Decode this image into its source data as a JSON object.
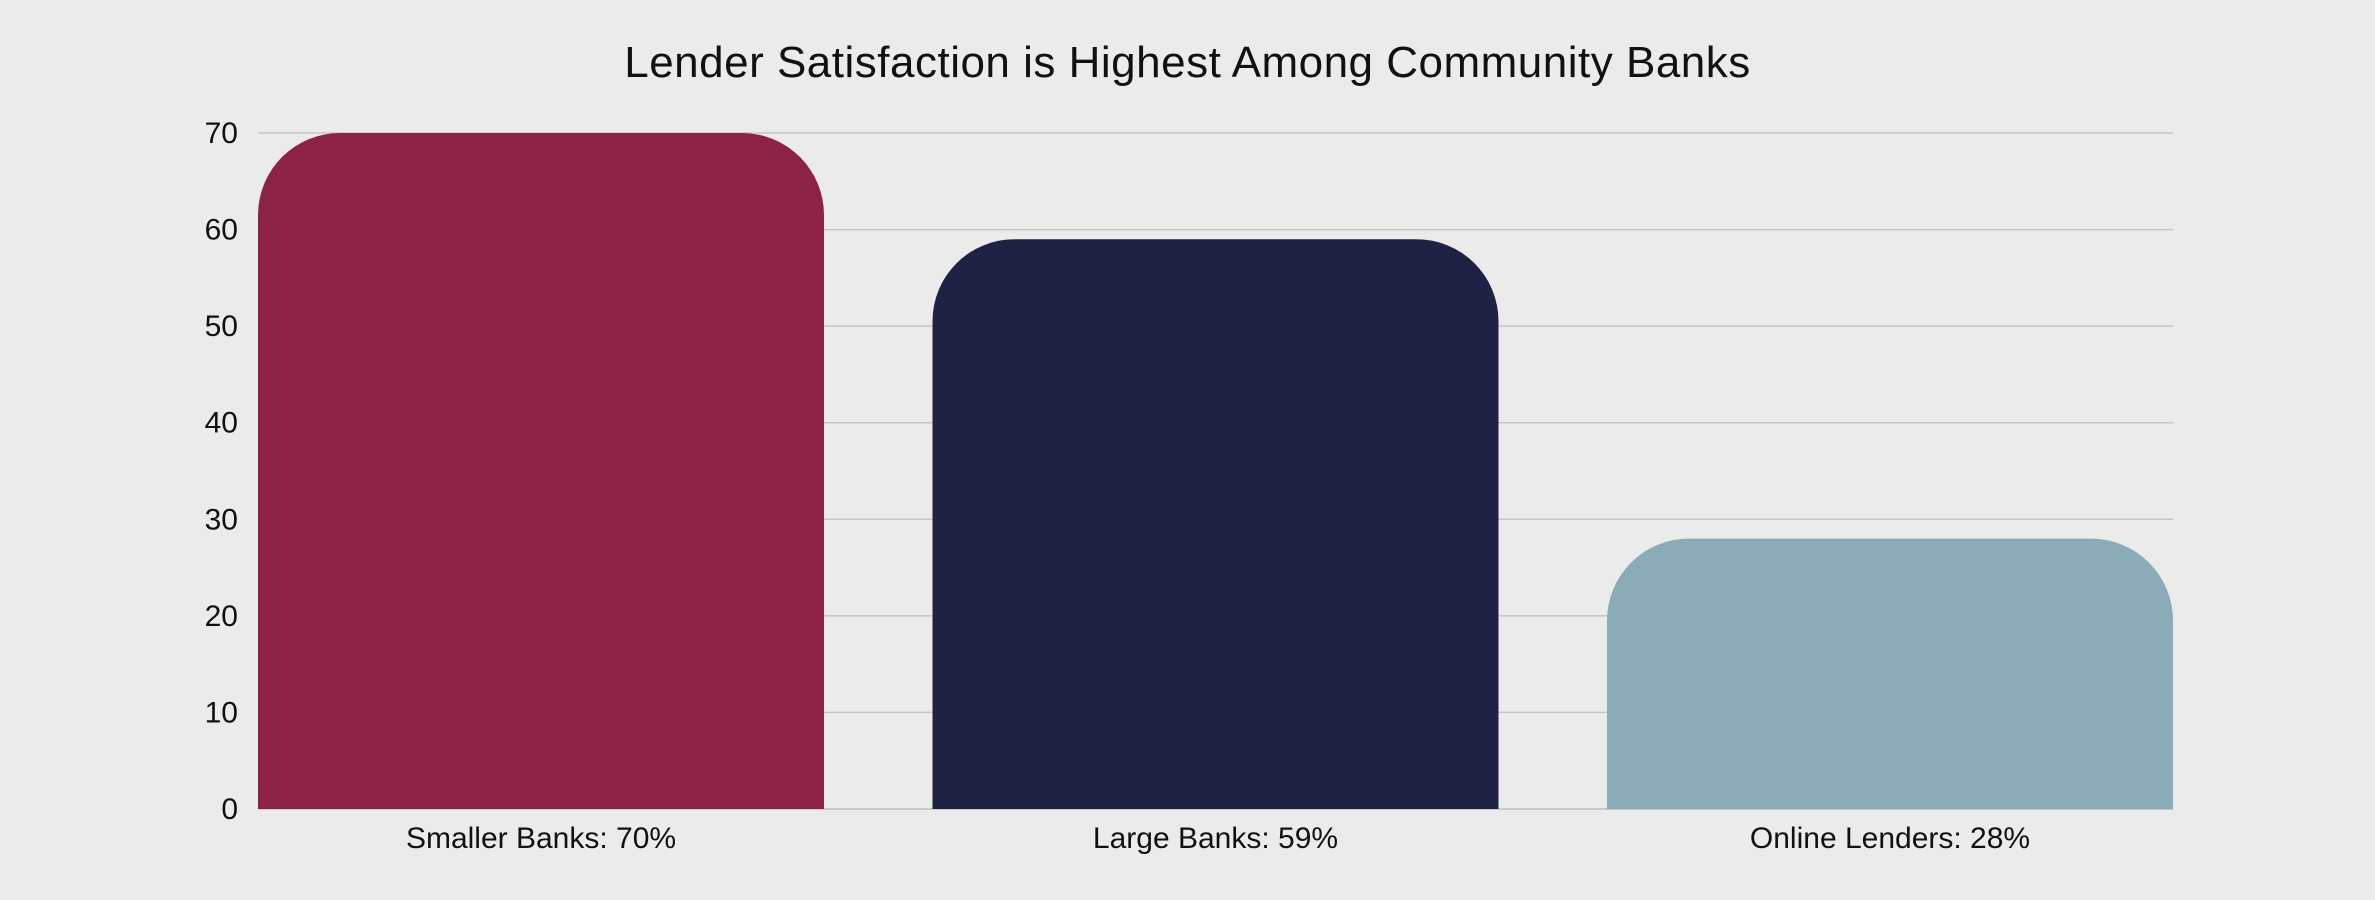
{
  "chart_data": {
    "type": "bar",
    "title": "Lender Satisfaction is Highest Among Community Banks",
    "xlabel": "",
    "ylabel": "",
    "categories": [
      "Smaller Banks: 70%",
      "Large Banks: 59%",
      "Online Lenders: 28%"
    ],
    "values": [
      70,
      59,
      28
    ],
    "colors": [
      "#8c2244",
      "#1f2244",
      "#8aabb8"
    ],
    "ylim": [
      0,
      70
    ],
    "yticks": [
      0,
      10,
      20,
      30,
      40,
      50,
      60,
      70
    ],
    "grid": true,
    "legend": "none"
  }
}
